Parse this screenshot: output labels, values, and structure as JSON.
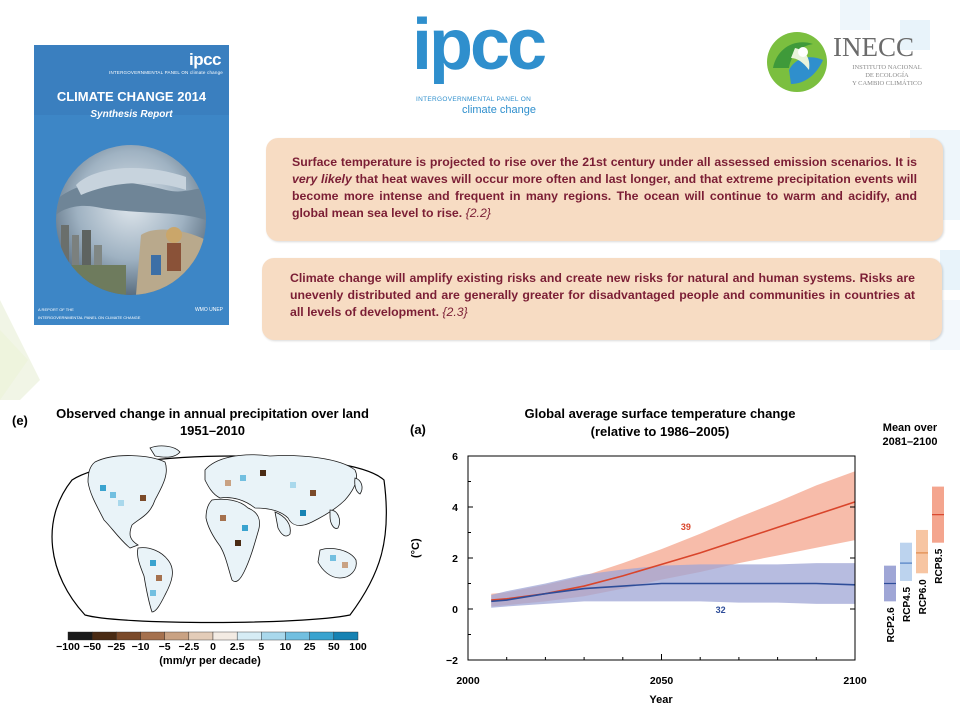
{
  "cover": {
    "ipcc": "ipcc",
    "org_line": "INTERGOVERNMENTAL PANEL ON climate change",
    "title": "CLIMATE CHANGE 2014",
    "subtitle": "Synthesis Report",
    "footer_1": "A REPORT OF THE",
    "footer_2": "INTERGOVERNMENTAL PANEL ON CLIMATE CHANGE",
    "logos": "WMO  UNEP"
  },
  "ipcc_logo": {
    "word": "ipcc",
    "line1": "INTERGOVERNMENTAL PANEL ON",
    "line2": "climate change",
    "color": "#2f8fcd"
  },
  "inecc_logo": {
    "name": "INECC",
    "line1": "INSTITUTO NACIONAL",
    "line2": "DE ECOLOGÍA",
    "line3": "Y CAMBIO CLIMÁTICO"
  },
  "box1": {
    "text_a": "Surface temperature is projected to rise over the 21st century under all assessed emission scenarios. It is ",
    "emph": "very likely",
    "text_b": " that heat waves will occur more often and last longer, and that extreme precipitation events will become more intense and frequent in many regions. The ocean will continue to warm and acidify, and global mean sea level to rise. ",
    "ref": "{2.2}"
  },
  "box2": {
    "text": "Climate change will amplify existing risks and create new risks for natural and human systems. Risks are unevenly distributed and are generally greater for disadvantaged people and communities in countries at all levels of development. ",
    "ref": "{2.3}"
  },
  "map": {
    "panel_label": "(e)",
    "title_line1": "Observed change in annual precipitation over land",
    "title_line2": "1951–2010",
    "colorbar_ticks": [
      "−100",
      "−50",
      "−25",
      "−10",
      "−5",
      "−2.5",
      "0",
      "2.5",
      "5",
      "10",
      "25",
      "50",
      "100"
    ],
    "colorbar_colors": [
      "#1a1a1a",
      "#4a2b14",
      "#7b4a2a",
      "#a5714e",
      "#c9a283",
      "#e3ccb8",
      "#f3ebe3",
      "#d6ecf5",
      "#a9d8ec",
      "#72bfe0",
      "#3aa3cf",
      "#1682b3"
    ],
    "unit": "(mm/yr per decade)"
  },
  "chart_data": {
    "type": "line",
    "panel_label": "(a)",
    "title": "Global average surface temperature change",
    "subtitle": "(relative to 1986–2005)",
    "xlabel": "Year",
    "ylabel": "(°C)",
    "xlim": [
      2000,
      2100
    ],
    "ylim": [
      -2,
      6
    ],
    "xticks": [
      2000,
      2050,
      2100
    ],
    "yticks": [
      -2,
      0,
      2,
      4,
      6
    ],
    "series": [
      {
        "name": "RCP8.5",
        "color": "#d9452b",
        "band_color": "#f4a58e",
        "count_label": "39",
        "x": [
          2006,
          2010,
          2020,
          2030,
          2040,
          2050,
          2060,
          2070,
          2080,
          2090,
          2100
        ],
        "y": [
          0.35,
          0.4,
          0.6,
          0.9,
          1.3,
          1.75,
          2.2,
          2.7,
          3.2,
          3.7,
          4.2
        ],
        "lower": [
          0.1,
          0.15,
          0.3,
          0.5,
          0.8,
          1.15,
          1.45,
          1.8,
          2.1,
          2.4,
          2.7
        ],
        "upper": [
          0.6,
          0.65,
          0.95,
          1.3,
          1.8,
          2.35,
          2.95,
          3.6,
          4.2,
          4.85,
          5.4
        ]
      },
      {
        "name": "RCP2.6",
        "color": "#2e4d99",
        "band_color": "#9fa6d6",
        "count_label": "32",
        "x": [
          2006,
          2010,
          2020,
          2030,
          2040,
          2050,
          2060,
          2070,
          2080,
          2090,
          2100
        ],
        "y": [
          0.3,
          0.35,
          0.6,
          0.8,
          0.9,
          1.0,
          1.0,
          1.0,
          1.0,
          1.0,
          0.95
        ],
        "lower": [
          0.05,
          0.1,
          0.2,
          0.3,
          0.3,
          0.3,
          0.3,
          0.25,
          0.25,
          0.2,
          0.2
        ],
        "upper": [
          0.55,
          0.7,
          1.0,
          1.35,
          1.55,
          1.7,
          1.75,
          1.75,
          1.75,
          1.8,
          1.8
        ]
      }
    ],
    "mean_label_line1": "Mean over",
    "mean_label_line2": "2081–2100",
    "mean_bars": [
      {
        "name": "RCP2.6",
        "low": 0.3,
        "high": 1.7,
        "mean": 1.0,
        "fill": "#9fa6d6",
        "line": "#2e4d99"
      },
      {
        "name": "RCP4.5",
        "low": 1.1,
        "high": 2.6,
        "mean": 1.8,
        "fill": "#bcd3ee",
        "line": "#4f7fc4"
      },
      {
        "name": "RCP6.0",
        "low": 1.4,
        "high": 3.1,
        "mean": 2.2,
        "fill": "#f7c5a2",
        "line": "#e08a4c"
      },
      {
        "name": "RCP8.5",
        "low": 2.6,
        "high": 4.8,
        "mean": 3.7,
        "fill": "#f4a58e",
        "line": "#d9452b"
      }
    ]
  }
}
